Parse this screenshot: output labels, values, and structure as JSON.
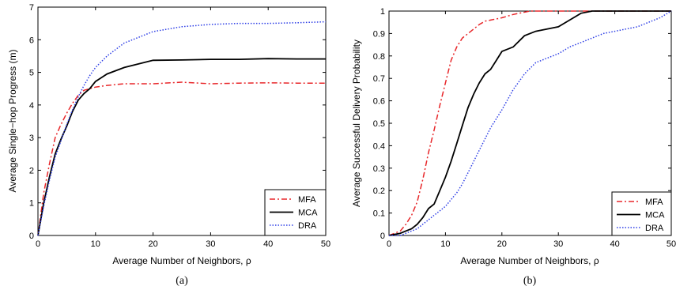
{
  "chart_data": [
    {
      "type": "line",
      "caption": "(a)",
      "xlabel": "Average Number of Neighbors, ρ",
      "ylabel": "Average Single−hop Progress (m)",
      "xlim": [
        0,
        50
      ],
      "ylim": [
        0,
        7
      ],
      "xticks": [
        "0",
        "10",
        "20",
        "30",
        "40",
        "50"
      ],
      "yticks": [
        "0",
        "1",
        "2",
        "3",
        "4",
        "5",
        "6",
        "7"
      ],
      "legend_position": "bottom-right",
      "series": [
        {
          "name": "MFA",
          "color": "#e8272a",
          "style": "dashdot",
          "x": [
            0,
            1,
            2,
            3,
            4,
            5,
            6,
            7,
            8,
            9,
            10,
            12,
            15,
            20,
            25,
            30,
            35,
            40,
            45,
            50
          ],
          "y": [
            0,
            1.3,
            2.2,
            3.0,
            3.4,
            3.75,
            4.05,
            4.3,
            4.45,
            4.5,
            4.55,
            4.6,
            4.65,
            4.65,
            4.7,
            4.65,
            4.67,
            4.68,
            4.67,
            4.67
          ]
        },
        {
          "name": "MCA",
          "color": "#000000",
          "style": "solid",
          "x": [
            0,
            1,
            2,
            3,
            4,
            5,
            6,
            7,
            8,
            9,
            10,
            12,
            15,
            20,
            25,
            30,
            35,
            40,
            45,
            50
          ],
          "y": [
            0,
            1.0,
            1.8,
            2.5,
            2.95,
            3.35,
            3.8,
            4.15,
            4.35,
            4.5,
            4.72,
            4.95,
            5.15,
            5.37,
            5.38,
            5.4,
            5.4,
            5.42,
            5.41,
            5.41
          ]
        },
        {
          "name": "DRA",
          "color": "#2e3fe6",
          "style": "dotted",
          "x": [
            0,
            1,
            2,
            3,
            4,
            5,
            6,
            7,
            8,
            9,
            10,
            12,
            15,
            20,
            25,
            30,
            35,
            40,
            45,
            50
          ],
          "y": [
            0,
            0.9,
            1.7,
            2.4,
            2.9,
            3.4,
            3.85,
            4.25,
            4.6,
            4.9,
            5.15,
            5.5,
            5.9,
            6.25,
            6.4,
            6.47,
            6.5,
            6.5,
            6.52,
            6.55
          ]
        }
      ]
    },
    {
      "type": "line",
      "caption": "(b)",
      "xlabel": "Average Number of Neighbors, ρ",
      "ylabel": "Average Successful Delivery Probability",
      "xlim": [
        0,
        50
      ],
      "ylim": [
        0,
        1
      ],
      "xticks": [
        "0",
        "10",
        "20",
        "30",
        "40",
        "50"
      ],
      "yticks": [
        "0",
        "0.1",
        "0.2",
        "0.3",
        "0.4",
        "0.5",
        "0.6",
        "0.7",
        "0.8",
        "0.9",
        "1"
      ],
      "legend_position": "bottom-right",
      "series": [
        {
          "name": "MFA",
          "color": "#e8272a",
          "style": "dashdot",
          "x": [
            0,
            2,
            3,
            4,
            5,
            6,
            7,
            8,
            9,
            10,
            11,
            12,
            13,
            14,
            15,
            16,
            17,
            18,
            20,
            22,
            25,
            30,
            40,
            50
          ],
          "y": [
            0,
            0.02,
            0.05,
            0.09,
            0.15,
            0.25,
            0.37,
            0.47,
            0.58,
            0.68,
            0.78,
            0.84,
            0.88,
            0.9,
            0.92,
            0.94,
            0.955,
            0.96,
            0.97,
            0.985,
            1.0,
            1.0,
            1.0,
            1.0
          ]
        },
        {
          "name": "MCA",
          "color": "#000000",
          "style": "solid",
          "x": [
            0,
            2,
            3,
            4,
            5,
            6,
            7,
            8,
            9,
            10,
            11,
            12,
            13,
            14,
            15,
            16,
            17,
            18,
            19,
            20,
            22,
            24,
            26,
            28,
            30,
            32,
            34,
            36,
            40,
            50
          ],
          "y": [
            0,
            0.01,
            0.02,
            0.03,
            0.05,
            0.08,
            0.12,
            0.14,
            0.2,
            0.26,
            0.33,
            0.41,
            0.49,
            0.57,
            0.63,
            0.68,
            0.72,
            0.74,
            0.78,
            0.82,
            0.84,
            0.89,
            0.91,
            0.92,
            0.93,
            0.96,
            0.99,
            1.0,
            1.0,
            1.0
          ]
        },
        {
          "name": "DRA",
          "color": "#2e3fe6",
          "style": "dotted",
          "x": [
            0,
            2,
            3,
            4,
            5,
            6,
            7,
            8,
            9,
            10,
            11,
            12,
            13,
            14,
            15,
            16,
            17,
            18,
            19,
            20,
            22,
            24,
            26,
            28,
            30,
            32,
            34,
            36,
            38,
            40,
            42,
            44,
            46,
            48,
            50
          ],
          "y": [
            0,
            0.0,
            0.01,
            0.02,
            0.03,
            0.05,
            0.07,
            0.09,
            0.11,
            0.13,
            0.16,
            0.19,
            0.23,
            0.28,
            0.33,
            0.38,
            0.43,
            0.48,
            0.52,
            0.56,
            0.65,
            0.72,
            0.77,
            0.79,
            0.81,
            0.84,
            0.86,
            0.88,
            0.9,
            0.91,
            0.92,
            0.93,
            0.95,
            0.97,
            1.0
          ]
        }
      ]
    }
  ]
}
